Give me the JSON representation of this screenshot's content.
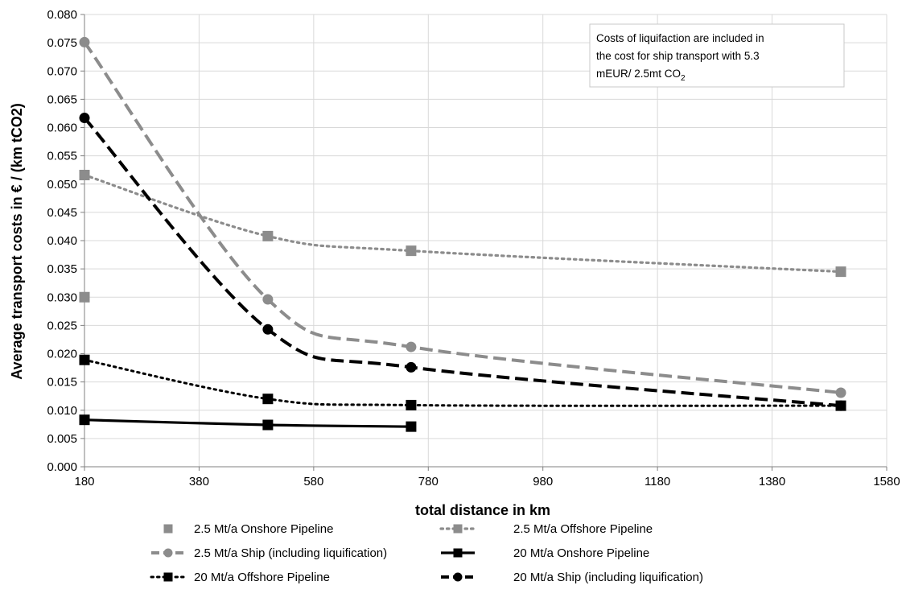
{
  "chart_data": {
    "type": "line",
    "xlabel": "total distance in km",
    "ylabel": "Average transport costs in € / (km tCO2)",
    "xlim": [
      180,
      1580
    ],
    "ylim": [
      0,
      0.08
    ],
    "xticks": [
      "180",
      "380",
      "580",
      "780",
      "980",
      "1180",
      "1380",
      "1580"
    ],
    "yticks": [
      "0.000",
      "0.005",
      "0.010",
      "0.015",
      "0.020",
      "0.025",
      "0.030",
      "0.035",
      "0.040",
      "0.045",
      "0.050",
      "0.055",
      "0.060",
      "0.065",
      "0.070",
      "0.075",
      "0.080"
    ],
    "grid": true,
    "legend_position": "bottom",
    "annotation": {
      "lines": [
        "Costs of liquifaction are included in",
        "the cost for ship transport with 5.3",
        "mEUR/ 2.5mt CO"
      ],
      "subscript": "2"
    },
    "series": [
      {
        "name": "2.5 Mt/a Onshore Pipeline",
        "color": "#8c8c8c",
        "line": "none",
        "marker": "square",
        "x": [
          180
        ],
        "y": [
          0.03
        ]
      },
      {
        "name": "2.5 Mt/a Offshore Pipeline",
        "color": "#8c8c8c",
        "line": "dotted",
        "marker": "square",
        "x": [
          180,
          500,
          750,
          1500
        ],
        "y": [
          0.0516,
          0.0408,
          0.0382,
          0.0345
        ]
      },
      {
        "name": "2.5 Mt/a Ship (including liquification)",
        "color": "#8c8c8c",
        "line": "dashed",
        "marker": "circle",
        "x": [
          180,
          500,
          750,
          1500
        ],
        "y": [
          0.0751,
          0.0296,
          0.0212,
          0.0131
        ]
      },
      {
        "name": "20 Mt/a Onshore Pipeline",
        "color": "#000000",
        "line": "solid",
        "marker": "square",
        "x": [
          180,
          500,
          750
        ],
        "y": [
          0.0083,
          0.0074,
          0.0071
        ]
      },
      {
        "name": "20 Mt/a Offshore Pipeline",
        "color": "#000000",
        "line": "dotted",
        "marker": "square",
        "x": [
          180,
          500,
          750,
          1500
        ],
        "y": [
          0.0189,
          0.012,
          0.0109,
          0.0108
        ]
      },
      {
        "name": "20 Mt/a Ship (including liquification)",
        "color": "#000000",
        "line": "dashed",
        "marker": "circle",
        "x": [
          180,
          500,
          750,
          1500
        ],
        "y": [
          0.0617,
          0.0243,
          0.0176,
          0.0108
        ]
      }
    ]
  }
}
